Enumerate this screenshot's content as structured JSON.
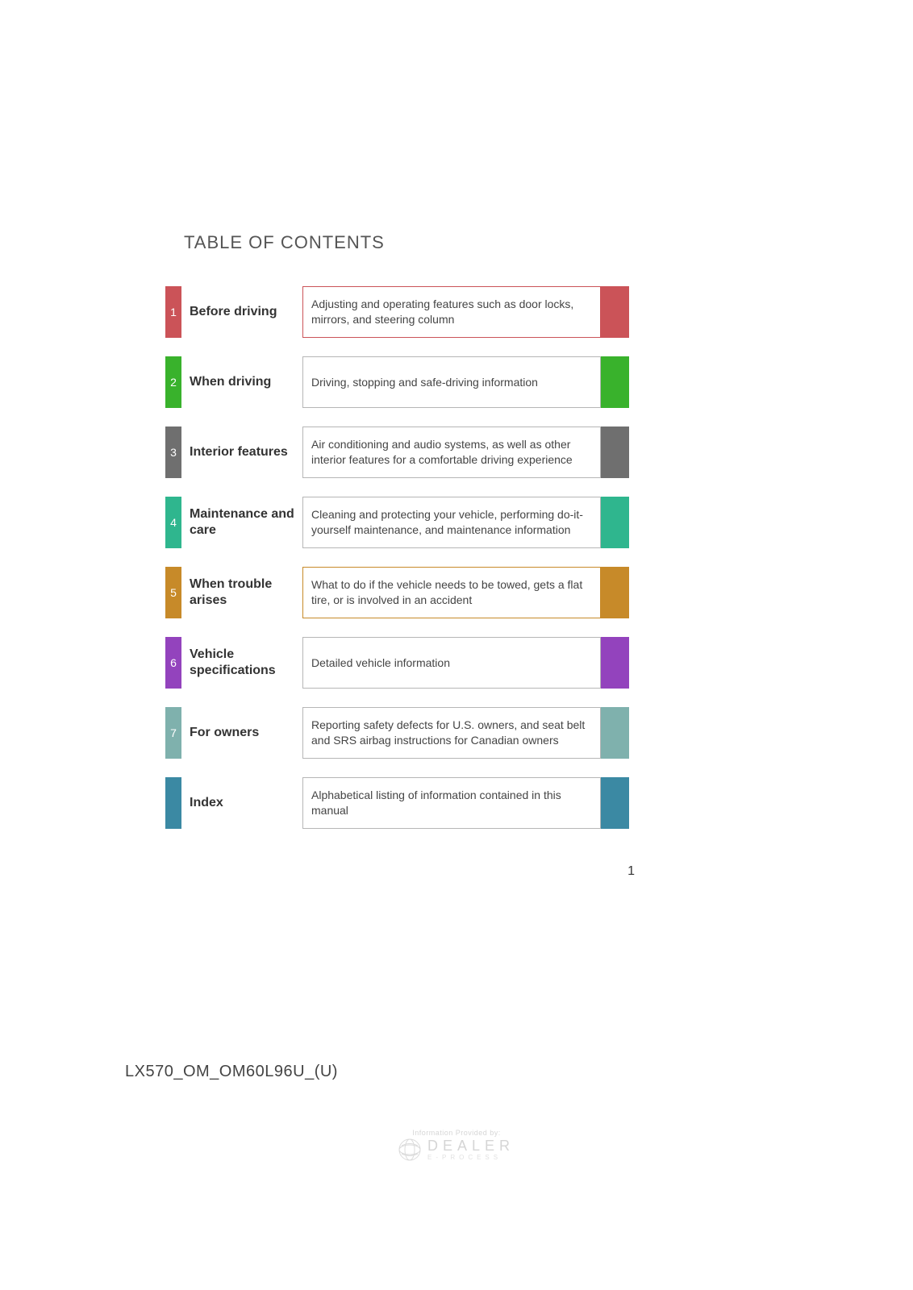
{
  "heading": "TABLE OF CONTENTS",
  "page_number": "1",
  "doc_code": "LX570_OM_OM60L96U_(U)",
  "footer": {
    "provided_by": "Information Provided by:",
    "brand_main": "DEALER",
    "brand_sub": "E-PROCESS"
  },
  "rows": [
    {
      "num": "1",
      "title": "Before driving",
      "desc": "Adjusting and operating features such as door locks, mirrors, and steering column",
      "color": "#cb5358",
      "border_color": "#cb5358"
    },
    {
      "num": "2",
      "title": "When driving",
      "desc": "Driving, stopping and safe-driving information",
      "color": "#39b22c",
      "border_color": "#b6b6b6"
    },
    {
      "num": "3",
      "title": "Interior features",
      "desc": "Air conditioning and audio systems, as well as other interior features for a comfortable driving experience",
      "color": "#6f6f6f",
      "border_color": "#b6b6b6"
    },
    {
      "num": "4",
      "title": "Maintenance and care",
      "desc": "Cleaning and protecting your vehicle, performing do-it-yourself maintenance, and maintenance information",
      "color": "#2fb68e",
      "border_color": "#b6b6b6"
    },
    {
      "num": "5",
      "title": "When trouble arises",
      "desc": "What to do if the vehicle needs to be towed, gets a flat tire, or is involved in an accident",
      "color": "#c78a29",
      "border_color": "#c78a29"
    },
    {
      "num": "6",
      "title": "Vehicle specifications",
      "desc": "Detailed vehicle information",
      "color": "#9343bd",
      "border_color": "#b6b6b6"
    },
    {
      "num": "7",
      "title": "For owners",
      "desc": "Reporting safety defects for U.S. owners, and seat belt and SRS airbag instructions for Canadian owners",
      "color": "#7fb1ad",
      "border_color": "#b6b6b6"
    },
    {
      "num": "",
      "title": "Index",
      "desc": "Alphabetical listing of information contained in this manual",
      "color": "#3b89a3",
      "border_color": "#b6b6b6"
    }
  ]
}
